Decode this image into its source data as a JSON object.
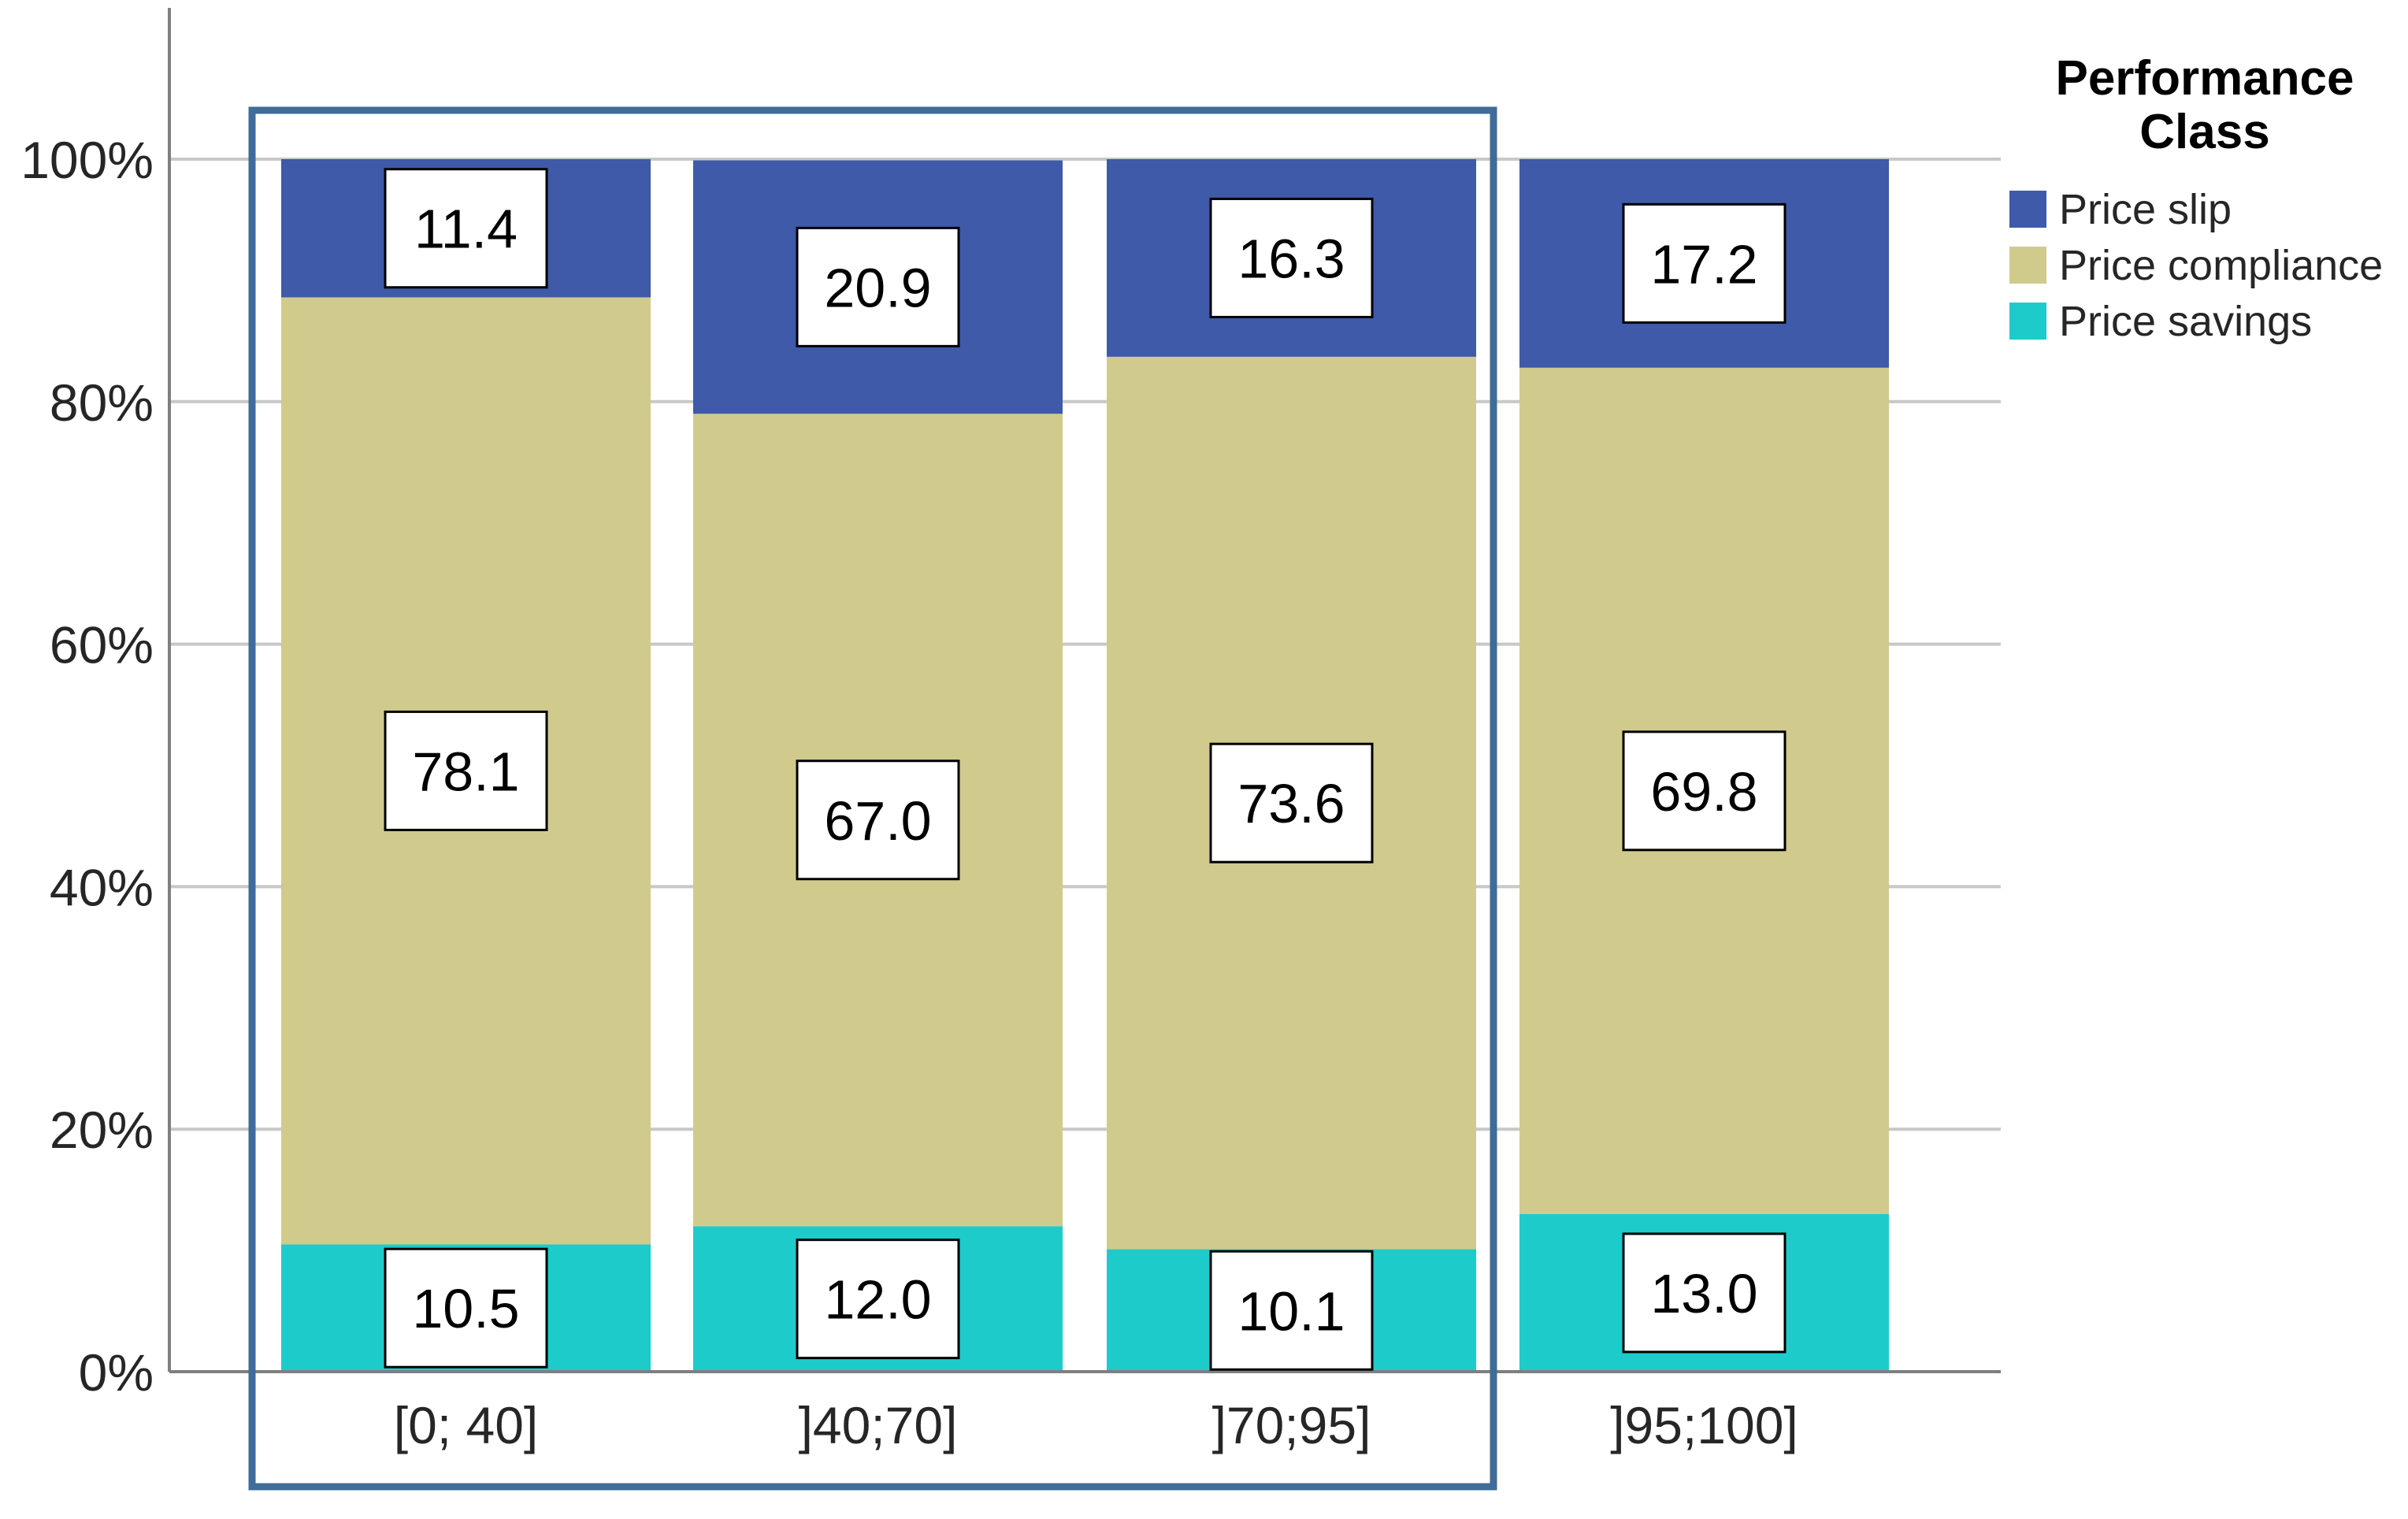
{
  "colors": {
    "highlight_frame": "#3f6c99",
    "grid": "#c8c8c8",
    "axis": "#7f7f7f",
    "label_box_border": "#000000",
    "label_box_fill": "#ffffff"
  },
  "chart_data": {
    "type": "bar",
    "stacked": true,
    "orientation": "vertical",
    "categories": [
      "[0; 40]",
      "]40;70]",
      "]70;95]",
      "]95;100]"
    ],
    "series": [
      {
        "name": "Price savings",
        "color": "#1ecbcb",
        "values": [
          10.5,
          12.0,
          10.1,
          13.0
        ],
        "labels": [
          "10.5",
          "12.0",
          "10.1",
          "13.0"
        ]
      },
      {
        "name": "Price compliance",
        "color": "#d0cb8d",
        "values": [
          78.1,
          67.0,
          73.6,
          69.8
        ],
        "labels": [
          "78.1",
          "67.0",
          "73.6",
          "69.8"
        ]
      },
      {
        "name": "Price slip",
        "color": "#3e5aa8",
        "values": [
          11.4,
          20.9,
          16.3,
          17.2
        ],
        "labels": [
          "11.4",
          "20.9",
          "16.3",
          "17.2"
        ]
      }
    ],
    "y_ticks": [
      "0%",
      "20%",
      "40%",
      "60%",
      "80%",
      "100%"
    ],
    "ylim": [
      0,
      100
    ],
    "grid": "horizontal",
    "legend": {
      "title_line1": "Performance",
      "title_line2": "Class",
      "position": "top-right",
      "items": [
        {
          "label": "Price slip",
          "color": "#3e5aa8"
        },
        {
          "label": "Price compliance",
          "color": "#d0cb8d"
        },
        {
          "label": "Price savings",
          "color": "#1ecbcb"
        }
      ]
    },
    "highlight": {
      "shape": "rectangle",
      "categories": [
        "[0; 40]",
        "]40;70]",
        "]70;95]"
      ]
    }
  }
}
